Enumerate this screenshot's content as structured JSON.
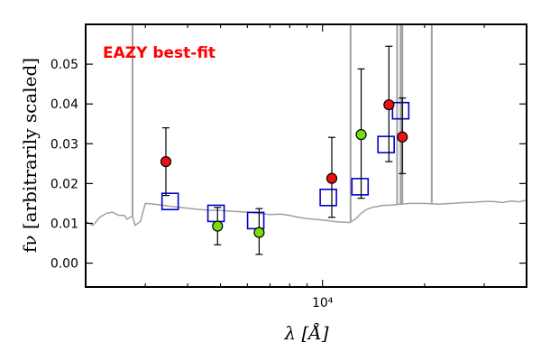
{
  "chart_data": {
    "type": "scatter",
    "title": "",
    "xlabel": "λ [Å]",
    "ylabel": "fν [arbitrarily scaled]",
    "xscale": "log",
    "xlim": [
      2000,
      40000
    ],
    "ylim": [
      -0.006,
      0.06
    ],
    "x_tick_labels": [
      {
        "value": 10000,
        "label": "10⁴"
      }
    ],
    "y_ticks": [
      0.0,
      0.01,
      0.02,
      0.03,
      0.04,
      0.05
    ],
    "y_tick_labels": [
      "0.00",
      "0.01",
      "0.02",
      "0.03",
      "0.04",
      "0.05"
    ],
    "grid": false,
    "annotation": {
      "text": "EAZY best-fit",
      "color": "#ff0000"
    },
    "colors": {
      "template": "#a0a0a0",
      "model": "#0000cc",
      "red_points": "#ee1111",
      "green_points": "#77dd11",
      "errorbar": "#000000"
    },
    "template_spectrum": {
      "x": [
        2000,
        2100,
        2200,
        2300,
        2400,
        2500,
        2600,
        2650,
        2700,
        2750,
        2800,
        2900,
        3000,
        3200,
        3400,
        3600,
        3800,
        4000,
        4300,
        4600,
        5000,
        5500,
        6000,
        6500,
        7000,
        7500,
        8000,
        8500,
        9000,
        9500,
        10000,
        10500,
        11000,
        11500,
        12000,
        12500,
        13000,
        13500,
        14000,
        14500,
        15000,
        16000,
        17000,
        18000,
        20000,
        22000,
        24000,
        26000,
        28000,
        30000,
        32000,
        34000,
        36000,
        38000,
        40000
      ],
      "y": [
        0.0105,
        0.0095,
        0.0115,
        0.0125,
        0.0128,
        0.012,
        0.012,
        0.011,
        0.0115,
        0.0118,
        0.0095,
        0.0105,
        0.015,
        0.0148,
        0.0145,
        0.0142,
        0.014,
        0.0138,
        0.0135,
        0.0133,
        0.0132,
        0.013,
        0.0128,
        0.0125,
        0.0122,
        0.0123,
        0.012,
        0.0115,
        0.0112,
        0.011,
        0.0108,
        0.0106,
        0.0104,
        0.0103,
        0.0102,
        0.011,
        0.0125,
        0.0135,
        0.014,
        0.0142,
        0.0145,
        0.0146,
        0.0148,
        0.015,
        0.015,
        0.0148,
        0.015,
        0.0152,
        0.0153,
        0.0155,
        0.0155,
        0.0152,
        0.0156,
        0.0154,
        0.0158
      ]
    },
    "emission_lines": [
      {
        "x": 2750,
        "peak": 0.06
      },
      {
        "x": 12100,
        "peak": 0.06
      },
      {
        "x": 16600,
        "peak": 0.06
      },
      {
        "x": 17000,
        "peak": 0.06
      },
      {
        "x": 17200,
        "peak": 0.06
      },
      {
        "x": 21000,
        "peak": 0.06
      }
    ],
    "series": [
      {
        "marker": "square",
        "color": "#0000cc",
        "x": [
          3550,
          4850,
          6350,
          10400,
          12900,
          15400,
          17000
        ],
        "y": [
          0.0155,
          0.0125,
          0.0107,
          0.0165,
          0.0192,
          0.0298,
          0.0383
        ]
      },
      {
        "marker": "circle",
        "color": "#ee1111",
        "x": [
          3450,
          10650,
          15700,
          17200
        ],
        "y": [
          0.0255,
          0.0213,
          0.0398,
          0.0317
        ],
        "yerr_low": [
          0.0085,
          0.0098,
          0.0143,
          0.0092
        ],
        "yerr_high": [
          0.0085,
          0.0103,
          0.0147,
          0.0098
        ]
      },
      {
        "marker": "circle",
        "color": "#77dd11",
        "x": [
          4900,
          6500,
          13000
        ],
        "y": [
          0.0093,
          0.0077,
          0.0323
        ],
        "yerr_low": [
          0.0047,
          0.0055,
          0.016
        ],
        "yerr_high": [
          0.0047,
          0.006,
          0.0165
        ]
      }
    ]
  }
}
